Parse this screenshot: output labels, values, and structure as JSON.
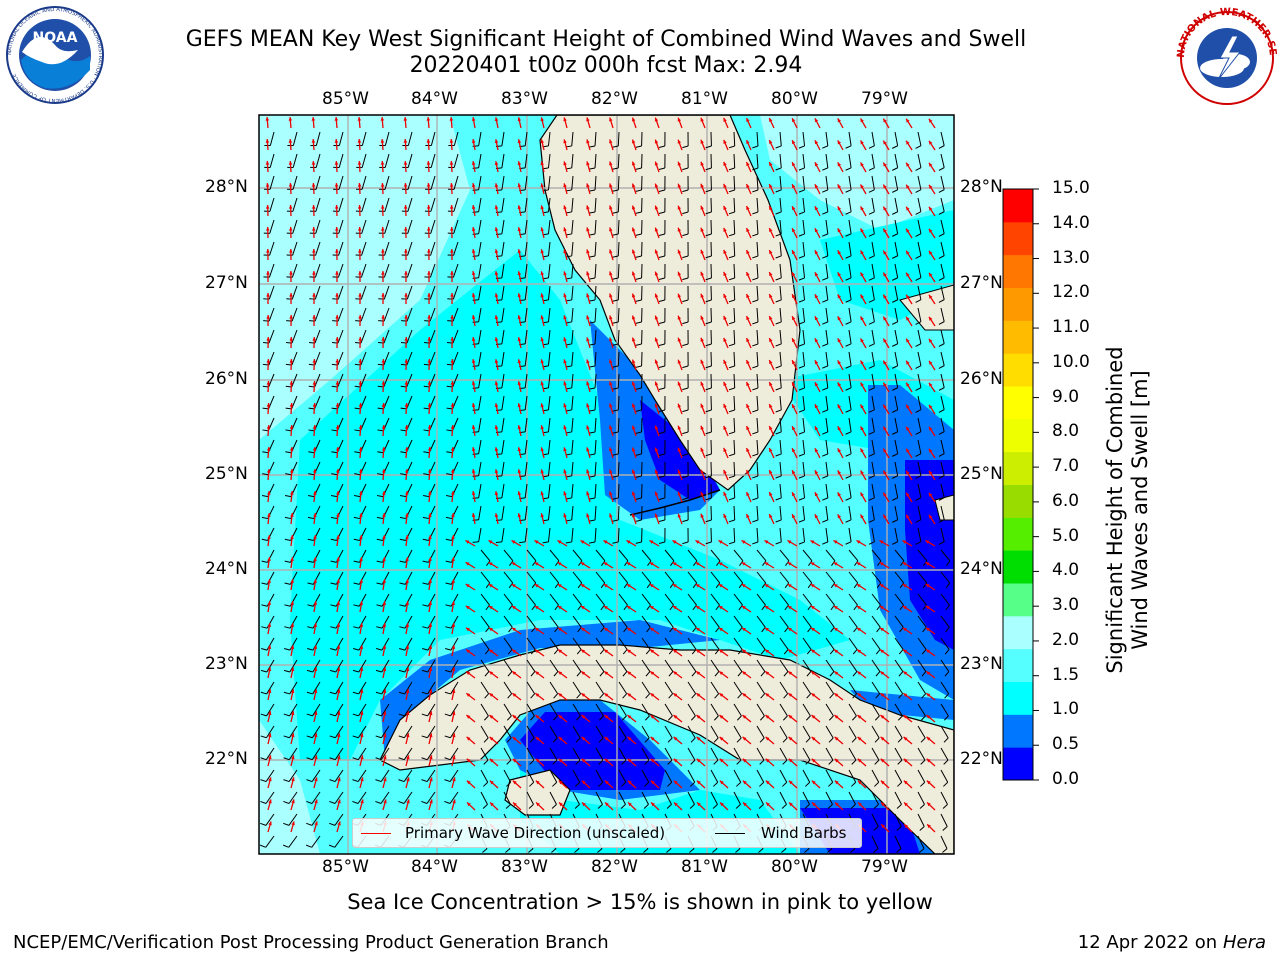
{
  "title": "GEFS MEAN Key West Significant Height of Combined Wind Waves and Swell",
  "subtitle": "20220401 t00z 000h fcst   Max: 2.94",
  "lon_ticks": [
    "85°W",
    "84°W",
    "83°W",
    "82°W",
    "81°W",
    "80°W",
    "79°W"
  ],
  "lat_ticks": [
    "28°N",
    "27°N",
    "26°N",
    "25°N",
    "24°N",
    "23°N",
    "22°N"
  ],
  "colorbar": {
    "title_line1": "Significant Height of Combined",
    "title_line2": "Wind Waves and Swell [m]",
    "labels": [
      "15.0",
      "14.0",
      "13.0",
      "12.0",
      "11.0",
      "10.0",
      "9.0",
      "8.0",
      "7.0",
      "6.0",
      "5.0",
      "4.0",
      "3.0",
      "2.0",
      "1.5",
      "1.0",
      "0.5",
      "0.0"
    ],
    "colors_low_to_high": [
      "#0000ff",
      "#0077ff",
      "#00ffff",
      "#55ffff",
      "#aaffff",
      "#55ff88",
      "#00dd00",
      "#55ee00",
      "#99dd00",
      "#ccee00",
      "#eeff00",
      "#ffff00",
      "#ffdd00",
      "#ffbb00",
      "#ff9900",
      "#ff7700",
      "#ff4400",
      "#ff0000"
    ]
  },
  "legend": {
    "wave_label": "Primary Wave Direction (unscaled)",
    "wave_color": "#ff0000",
    "barb_label": "Wind Barbs",
    "barb_color": "#000000"
  },
  "footer_note": "Sea Ice Concentration > 15% is shown in pink to yellow",
  "footer_left": "NCEP/EMC/Verification Post Processing Product Generation Branch",
  "footer_right_prefix": "12 Apr 2022 on ",
  "footer_right_host": "Hera",
  "logos": {
    "noaa_text": "NOAA",
    "noaa_ring": "NATIONAL OCEANIC AND ATMOSPHERIC ADMINISTRATION · U.S. DEPARTMENT OF COMMERCE",
    "nws_ring": "NATIONAL WEATHER SERVICE"
  },
  "colors": {
    "land": "#eeeddc",
    "sea_light": "#aaffff",
    "sea_mid": "#55ffff",
    "sea_cyan": "#00ffff",
    "sea_blue": "#0077ff",
    "sea_dark": "#0000ff"
  }
}
